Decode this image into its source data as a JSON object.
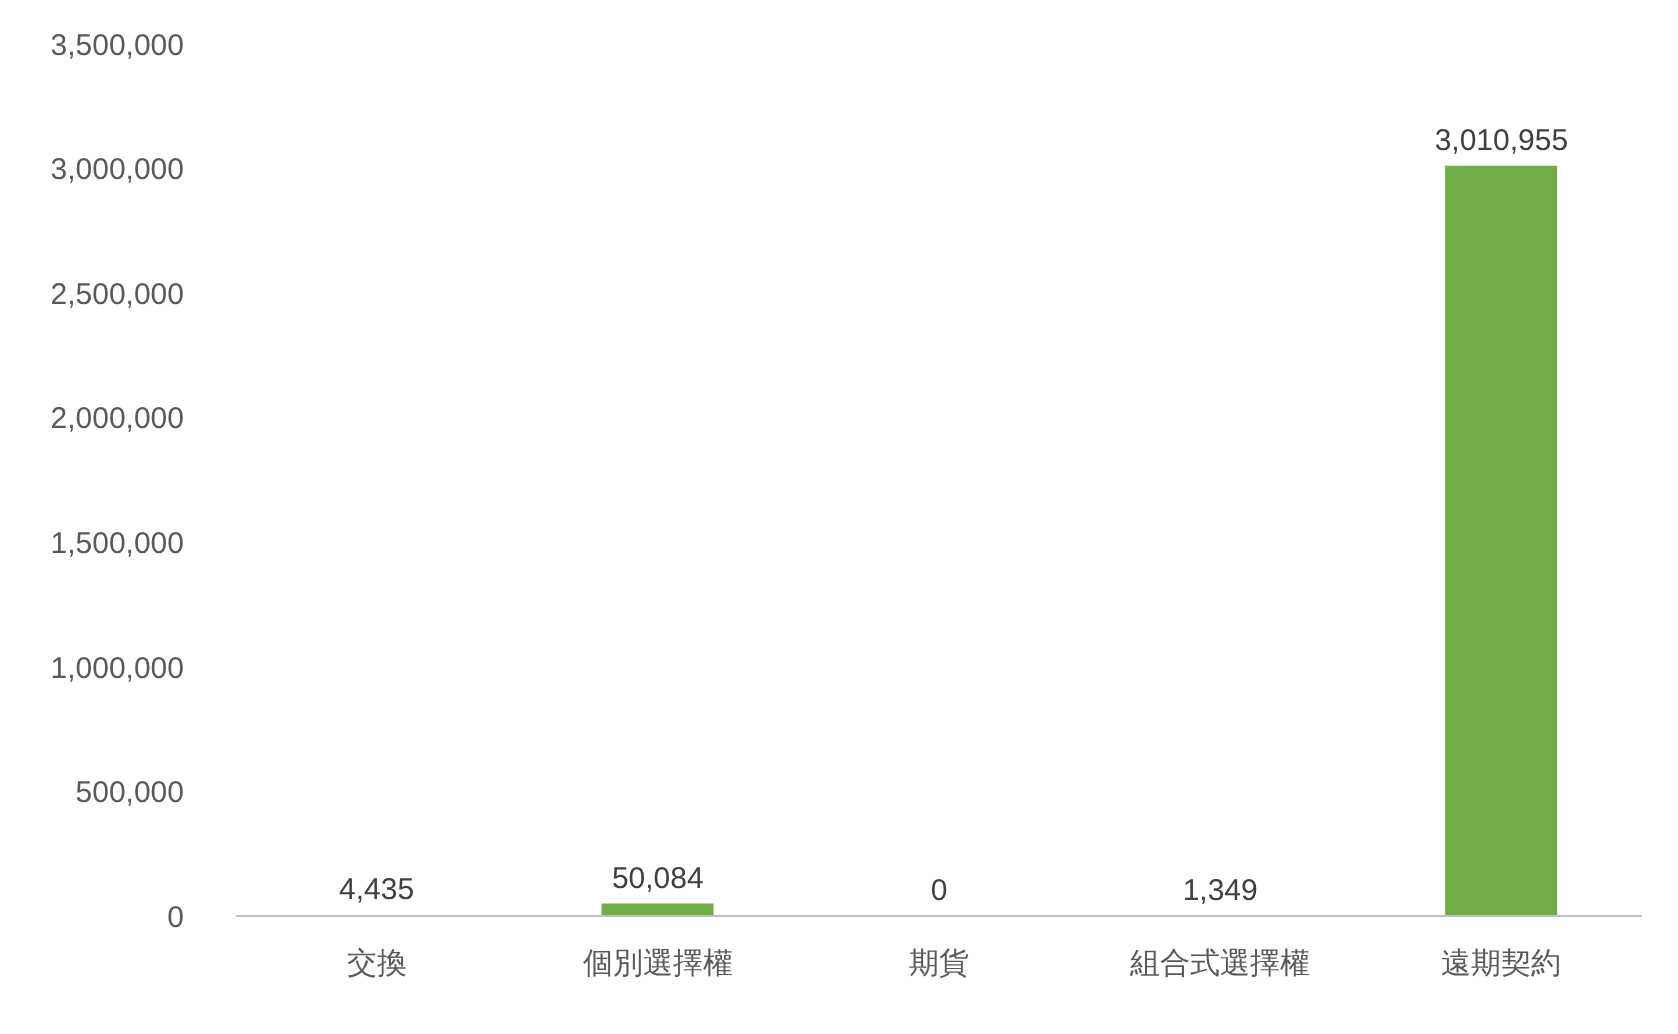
{
  "chart_data": {
    "type": "bar",
    "categories": [
      "交換",
      "個別選擇權",
      "期貨",
      "組合式選擇權",
      "遠期契約"
    ],
    "values": [
      4435,
      50084,
      0,
      1349,
      3010955
    ],
    "value_labels": [
      "4,435",
      "50,084",
      "0",
      "1,349",
      "3,010,955"
    ],
    "color": "#70ad47",
    "ylim": [
      0,
      3500000
    ],
    "yticks": [
      0,
      {
        "value": 500000,
        "label": "500,000"
      },
      {
        "value": 1000000,
        "label": "1,000,000"
      },
      {
        "value": 1500000,
        "label": "1,500,000"
      },
      {
        "value": 2000000,
        "label": "2,000,000"
      },
      {
        "value": 2500000,
        "label": "2,500,000"
      },
      {
        "value": 3000000,
        "label": "3,000,000"
      },
      {
        "value": 3500000,
        "label": "3,500,000"
      }
    ]
  }
}
